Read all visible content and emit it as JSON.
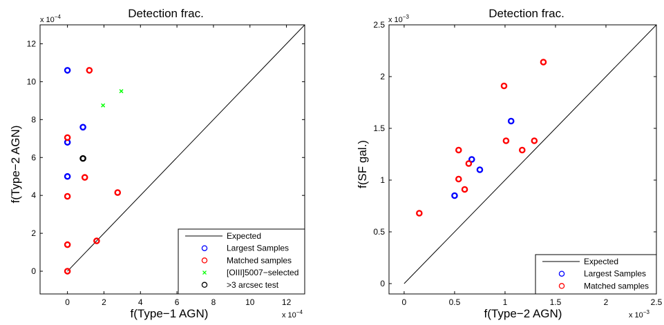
{
  "chart_data": [
    {
      "type": "scatter",
      "title": "Detection frac.",
      "xlabel": "f(Type−1 AGN)",
      "ylabel": "f(Type−2 AGN)",
      "x_exponent": "x 10",
      "x_exponent_power": "−4",
      "y_exponent": "x 10",
      "y_exponent_power": "−4",
      "scale": 0.0001,
      "xlim": [
        -1.5,
        13
      ],
      "ylim": [
        -1.2,
        13
      ],
      "xticks": [
        0,
        2,
        4,
        6,
        8,
        10,
        12
      ],
      "xtick_labels": [
        "0",
        "2",
        "4",
        "6",
        "8",
        "10",
        "12"
      ],
      "yticks": [
        0,
        2,
        4,
        6,
        8,
        10,
        12
      ],
      "ytick_labels": [
        "0",
        "2",
        "4",
        "6",
        "8",
        "10",
        "12"
      ],
      "grid": false,
      "legend_position": "bottom-right",
      "series": [
        {
          "name": "Expected",
          "kind": "line",
          "color": "#000000",
          "points": [
            [
              0,
              0
            ],
            [
              13,
              13
            ]
          ]
        },
        {
          "name": "Largest Samples",
          "kind": "circle",
          "color": "#0000ff",
          "points": [
            [
              0,
              10.6
            ],
            [
              0.85,
              7.6
            ],
            [
              0,
              6.8
            ],
            [
              0,
              5.0
            ]
          ]
        },
        {
          "name": "Matched samples",
          "kind": "circle",
          "color": "#ff0000",
          "points": [
            [
              1.2,
              10.6
            ],
            [
              0,
              7.05
            ],
            [
              0.95,
              4.95
            ],
            [
              0,
              3.95
            ],
            [
              2.75,
              4.15
            ],
            [
              0,
              1.4
            ],
            [
              1.6,
              1.6
            ],
            [
              0,
              0
            ]
          ]
        },
        {
          "name": "[OIII]5007−selected",
          "kind": "x",
          "color": "#00ff00",
          "points": [
            [
              1.95,
              8.75
            ],
            [
              2.95,
              9.5
            ]
          ]
        },
        {
          "name": ">3 arcsec test",
          "kind": "circle",
          "color": "#000000",
          "points": [
            [
              0.85,
              5.95
            ]
          ]
        }
      ]
    },
    {
      "type": "scatter",
      "title": "Detection frac.",
      "xlabel": "f(Type−2 AGN)",
      "ylabel": "f(SF gal.)",
      "x_exponent": "x 10",
      "x_exponent_power": "−3",
      "y_exponent": "x 10",
      "y_exponent_power": "−3",
      "scale": 0.001,
      "xlim": [
        -0.15,
        2.5
      ],
      "ylim": [
        -0.1,
        2.5
      ],
      "xticks": [
        0,
        0.5,
        1,
        1.5,
        2,
        2.5
      ],
      "xtick_labels": [
        "0",
        "0.5",
        "1",
        "1.5",
        "2",
        "2.5"
      ],
      "yticks": [
        0,
        0.5,
        1,
        1.5,
        2,
        2.5
      ],
      "ytick_labels": [
        "0",
        "0.5",
        "1",
        "1.5",
        "2",
        "2.5"
      ],
      "grid": false,
      "legend_position": "bottom-right",
      "series": [
        {
          "name": "Expected",
          "kind": "line",
          "color": "#000000",
          "points": [
            [
              0,
              0
            ],
            [
              2.5,
              2.5
            ]
          ]
        },
        {
          "name": "Largest Samples",
          "kind": "circle",
          "color": "#0000ff",
          "points": [
            [
              1.06,
              1.57
            ],
            [
              0.67,
              1.2
            ],
            [
              0.75,
              1.1
            ],
            [
              0.5,
              0.85
            ]
          ]
        },
        {
          "name": "Matched samples",
          "kind": "circle",
          "color": "#ff0000",
          "points": [
            [
              1.38,
              2.14
            ],
            [
              0.99,
              1.91
            ],
            [
              1.01,
              1.38
            ],
            [
              1.29,
              1.38
            ],
            [
              1.17,
              1.29
            ],
            [
              0.54,
              1.29
            ],
            [
              0.64,
              1.16
            ],
            [
              0.54,
              1.01
            ],
            [
              0.6,
              0.91
            ],
            [
              0.15,
              0.68
            ]
          ]
        }
      ]
    }
  ]
}
